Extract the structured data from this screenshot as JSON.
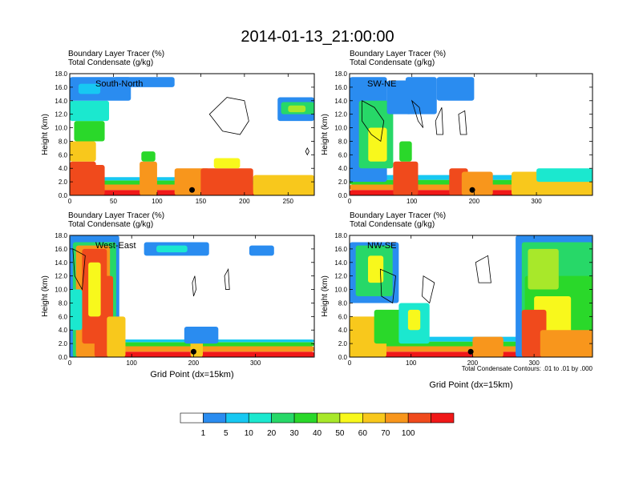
{
  "figure_title": "2014-01-13_21:00:00",
  "contour_note": "Total Condensate Contours: .01 to .01 by .000",
  "colors": {
    "c1": "#2a8cf0",
    "c5": "#17c8f2",
    "c10": "#1be8cf",
    "c20": "#27d868",
    "c30": "#2ad82a",
    "c40": "#a8e82a",
    "c50": "#f8f81c",
    "c60": "#f8c81c",
    "c70": "#f8961c",
    "c100": "#f04a1c",
    "top": "#f01818"
  },
  "chart_data": [
    {
      "type": "heatmap",
      "panel_label": "South-North",
      "title_line1": "Boundary Layer Tracer    (%)",
      "title_line2": "Total Condensate    (g/kg)",
      "xlabel": "",
      "ylabel": "Height (km)",
      "xlim": [
        0,
        280
      ],
      "ylim": [
        0,
        18
      ],
      "x_ticks": [
        "0",
        "50",
        "100",
        "150",
        "200",
        "250"
      ],
      "y_ticks": [
        "0.0",
        "2.0",
        "4.0",
        "6.0",
        "8.0",
        "10.0",
        "12.0",
        "14.0",
        "16.0",
        "18.0"
      ],
      "marker_x": 140
    },
    {
      "type": "heatmap",
      "panel_label": "SW-NE",
      "title_line1": "Boundary Layer Tracer    (%)",
      "title_line2": "Total Condensate    (g/kg)",
      "xlabel": "",
      "ylabel": "Height (km)",
      "xlim": [
        0,
        390
      ],
      "ylim": [
        0,
        18
      ],
      "x_ticks": [
        "0",
        "100",
        "200",
        "300"
      ],
      "y_ticks": [
        "0.0",
        "2.0",
        "4.0",
        "6.0",
        "8.0",
        "10.0",
        "12.0",
        "14.0",
        "16.0",
        "18.0"
      ],
      "marker_x": 197
    },
    {
      "type": "heatmap",
      "panel_label": "West-East",
      "title_line1": "Boundary Layer Tracer    (%)",
      "title_line2": "Total Condensate    (g/kg)",
      "xlabel": "Grid Point (dx=15km)",
      "ylabel": "Height (km)",
      "xlim": [
        0,
        395
      ],
      "ylim": [
        0,
        18
      ],
      "x_ticks": [
        "0",
        "100",
        "200",
        "300"
      ],
      "y_ticks": [
        "0.0",
        "2.0",
        "4.0",
        "6.0",
        "8.0",
        "10.0",
        "12.0",
        "14.0",
        "16.0",
        "18.0"
      ],
      "marker_x": 200
    },
    {
      "type": "heatmap",
      "panel_label": "NW-SE",
      "title_line1": "Boundary Layer Tracer    (%)",
      "title_line2": "Total Condensate    (g/kg)",
      "xlabel": "Grid Point (dx=15km)",
      "ylabel": "Height (km)",
      "xlim": [
        0,
        395
      ],
      "ylim": [
        0,
        18
      ],
      "x_ticks": [
        "0",
        "100",
        "200",
        "300"
      ],
      "y_ticks": [
        "0.0",
        "2.0",
        "4.0",
        "6.0",
        "8.0",
        "10.0",
        "12.0",
        "14.0",
        "16.0",
        "18.0"
      ],
      "marker_x": 197
    }
  ],
  "colorbar": {
    "labels": [
      "1",
      "5",
      "10",
      "20",
      "30",
      "40",
      "50",
      "60",
      "70",
      "100"
    ],
    "colors": [
      "#ffffff",
      "#2a8cf0",
      "#17c8f2",
      "#1be8cf",
      "#27d868",
      "#2ad82a",
      "#a8e82a",
      "#f8f81c",
      "#f8c81c",
      "#f8961c",
      "#f04a1c",
      "#f01818"
    ]
  }
}
